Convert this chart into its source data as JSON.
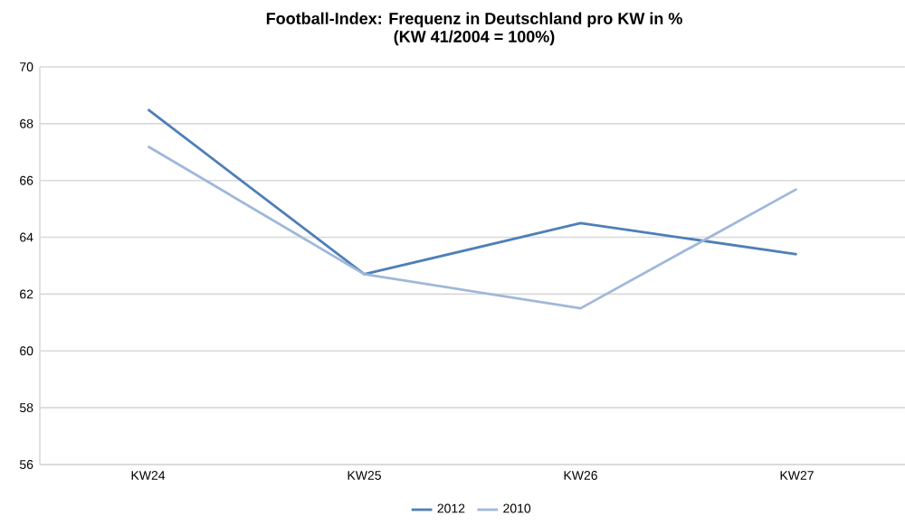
{
  "chart_data": {
    "type": "line",
    "title": "Football-Index: Frequenz in Deutschland pro KW in %",
    "subtitle": "(KW 41/2004 = 100%)",
    "categories": [
      "KW24",
      "KW25",
      "KW26",
      "KW27"
    ],
    "series": [
      {
        "name": "2012",
        "color": "#4f7fb8",
        "values": [
          68.5,
          62.7,
          64.5,
          63.4
        ]
      },
      {
        "name": "2010",
        "color": "#9fb8da",
        "values": [
          67.2,
          62.7,
          61.5,
          65.7
        ]
      }
    ],
    "ylim": [
      56,
      70
    ],
    "yticks": [
      56,
      58,
      60,
      62,
      64,
      66,
      68,
      70
    ],
    "grid": "y",
    "legend": "bottom",
    "marker": "none",
    "line_style": "solid"
  }
}
